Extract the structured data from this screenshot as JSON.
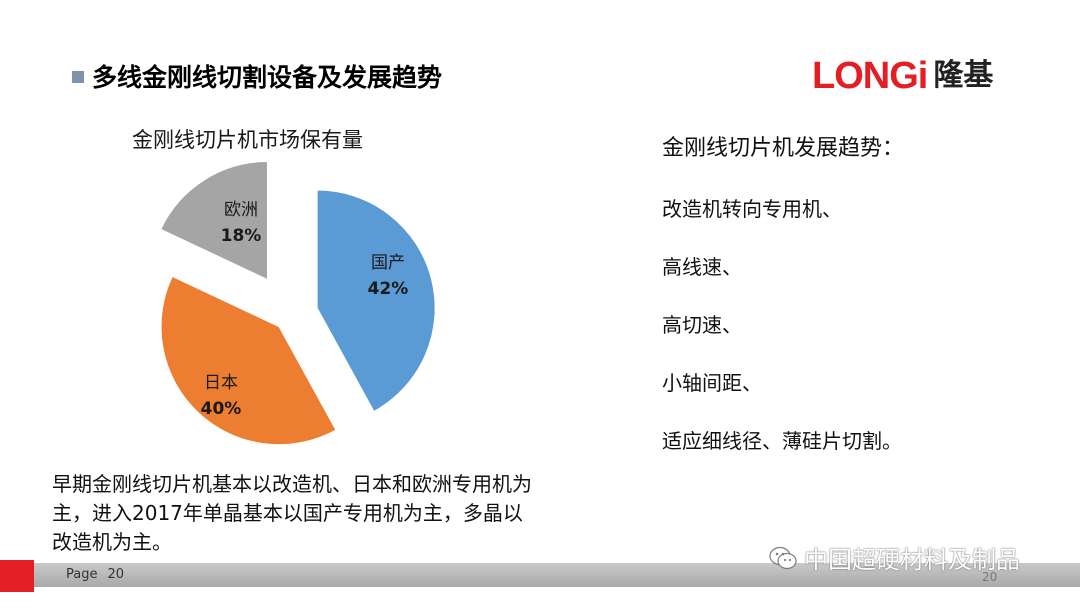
{
  "slide": {
    "title": "多线金刚线切割设备及发展趋势",
    "logo_latin": "LONGi",
    "logo_cjk": "隆基"
  },
  "chart_data": {
    "type": "pie",
    "title": "金刚线切片机市场保有量",
    "slices": [
      {
        "label": "国产",
        "value": 42,
        "display": "42%",
        "color": "#5b9bd5"
      },
      {
        "label": "日本",
        "value": 40,
        "display": "40%",
        "color": "#ed7d31"
      },
      {
        "label": "欧洲",
        "value": 18,
        "display": "18%",
        "color": "#a5a5a5"
      }
    ],
    "exploded": true
  },
  "trends": {
    "heading": "金刚线切片机发展趋势：",
    "items": [
      "改造机转向专用机、",
      "高线速、",
      "高切速、",
      "小轴间距、",
      "适应细线径、薄硅片切割。"
    ]
  },
  "note": "早期金刚线切片机基本以改造机、日本和欧洲专用机为主，进入2017年单晶基本以国产专用机为主，多晶以改造机为主。",
  "footer": {
    "page_label": "Page",
    "page_number": "20",
    "page_number_right": "20",
    "watermark": "中国超硬材料及制品"
  }
}
